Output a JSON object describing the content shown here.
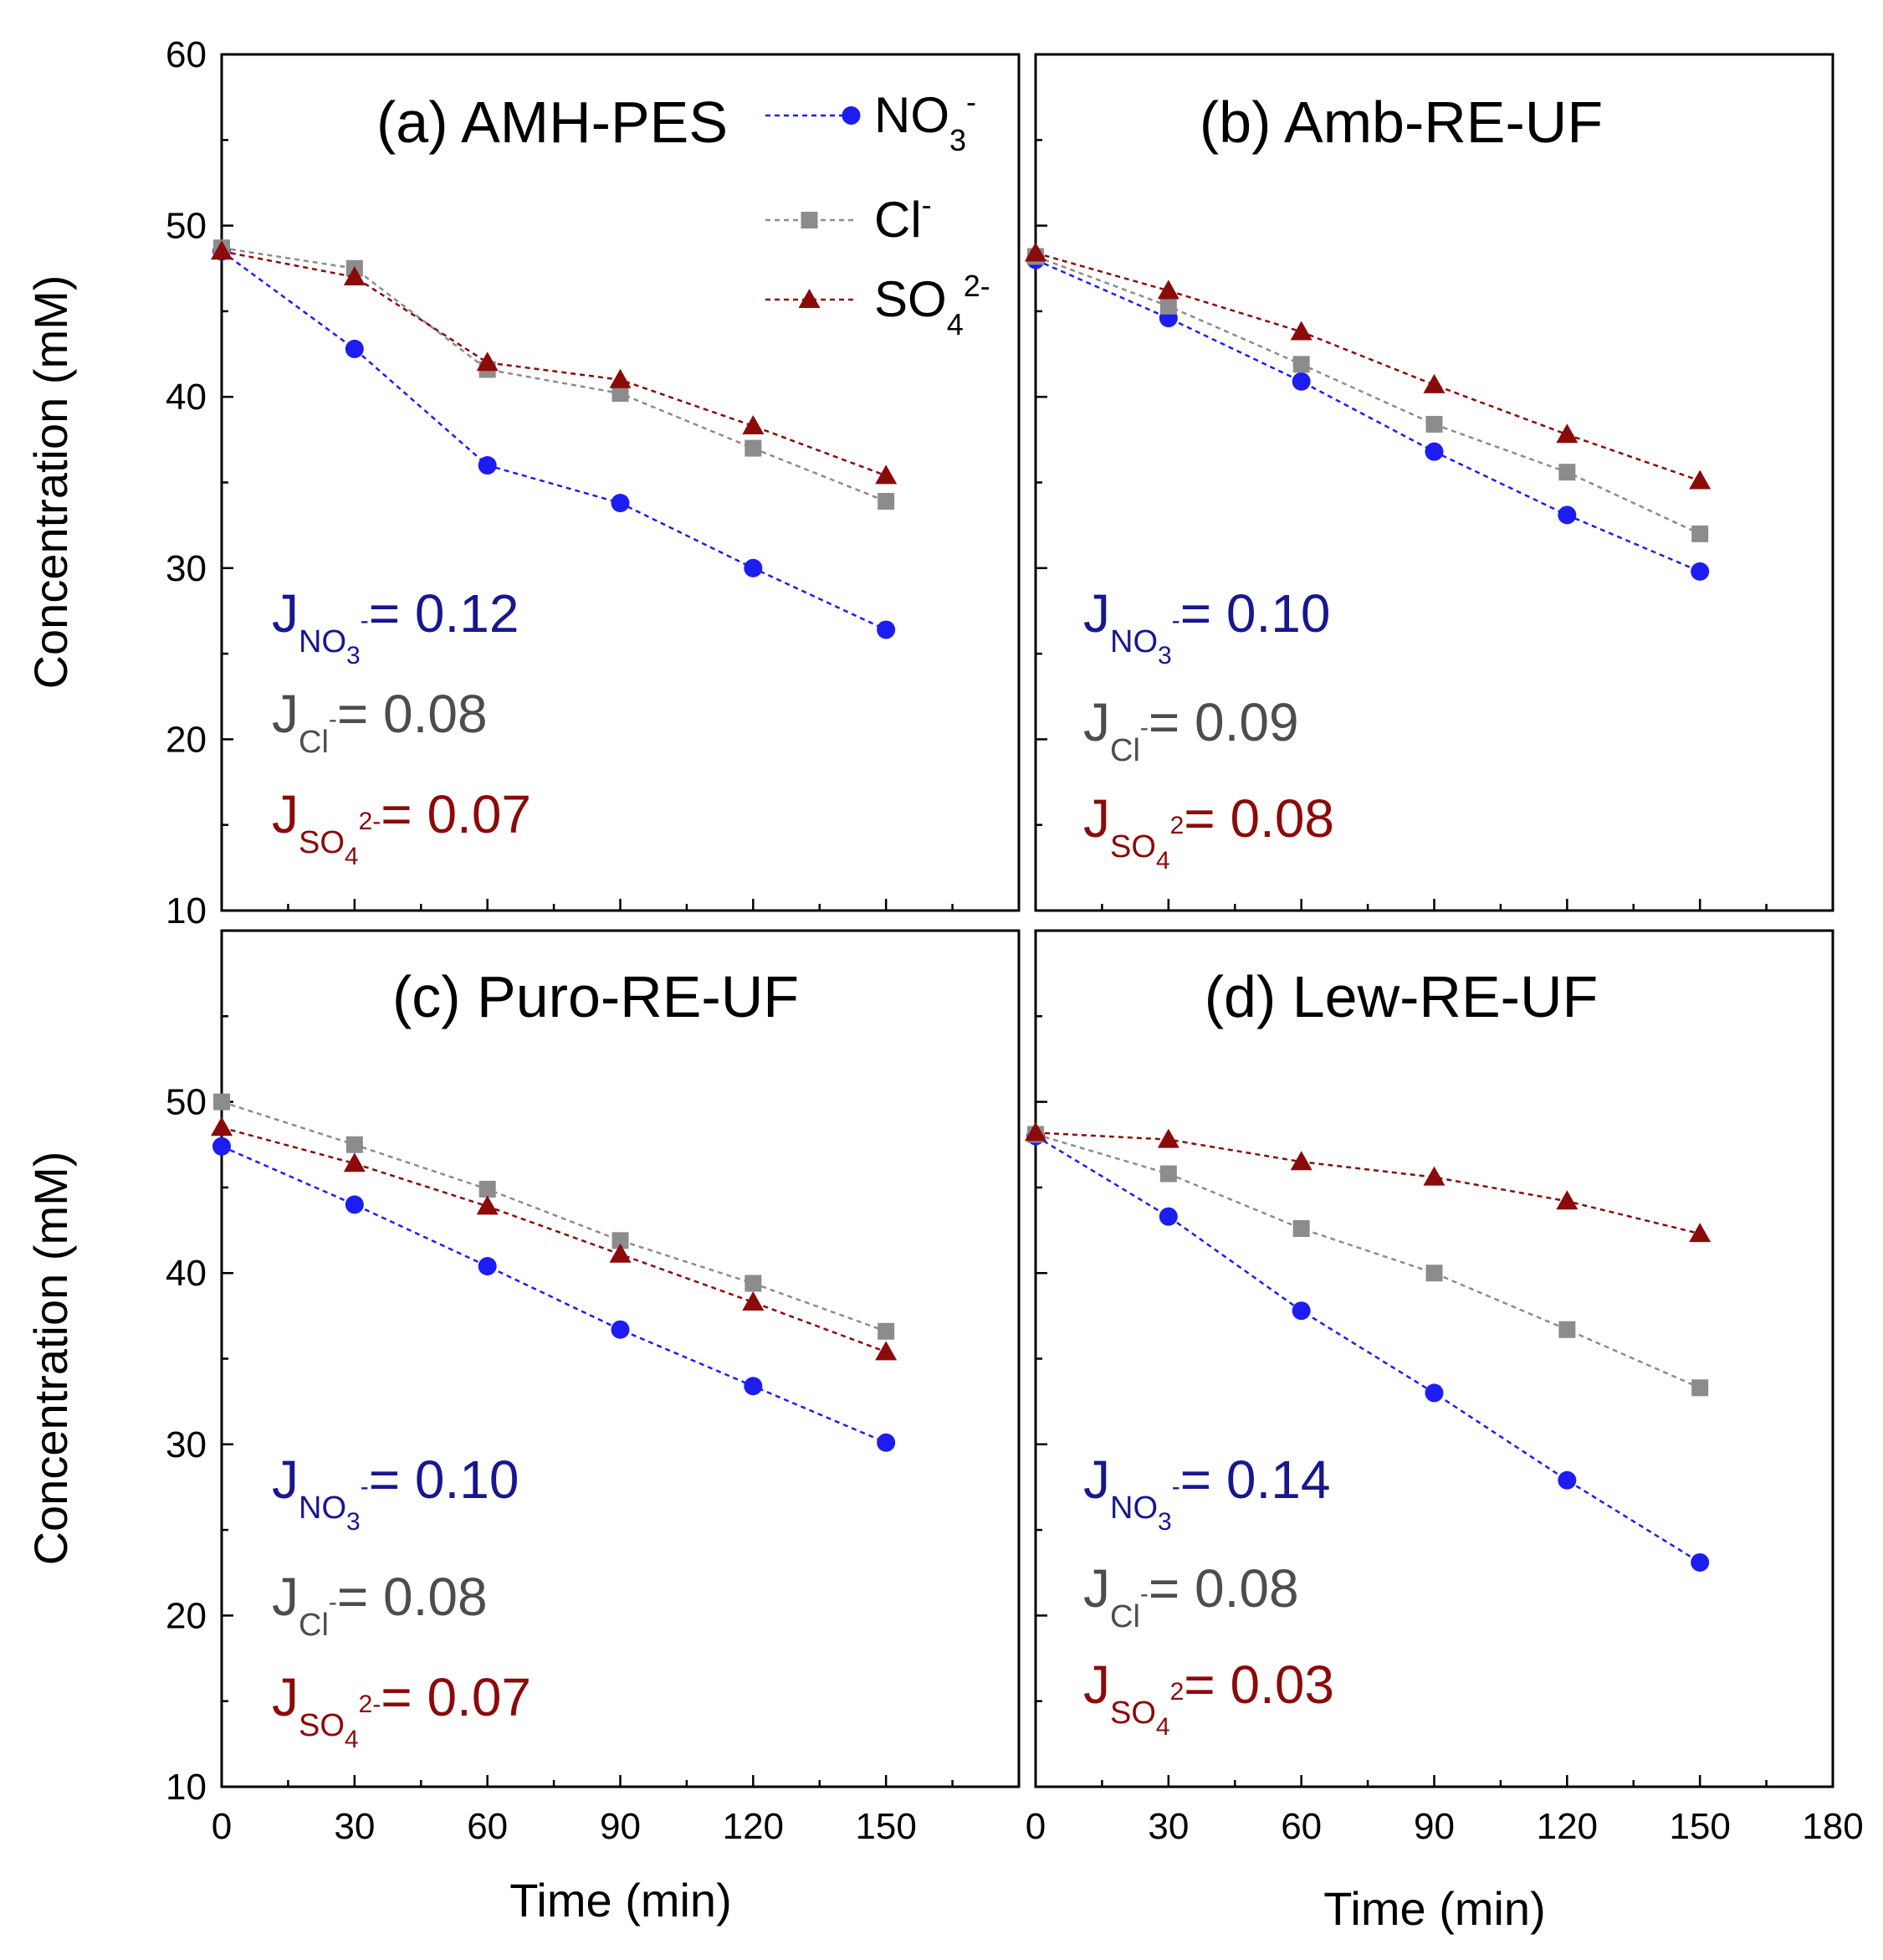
{
  "chart_data": [
    {
      "type": "line",
      "title": "(a) AMH-PES",
      "xlabel": "",
      "ylabel": "Concentration (mM)",
      "xlim": [
        0,
        180
      ],
      "ylim": [
        10,
        60
      ],
      "x": [
        0,
        30,
        60,
        90,
        120,
        150
      ],
      "series": [
        {
          "name": "NO3-",
          "values": [
            48.5,
            42.8,
            36.0,
            33.8,
            30.0,
            26.4
          ]
        },
        {
          "name": "Cl-",
          "values": [
            48.7,
            47.5,
            41.6,
            40.2,
            37.0,
            33.9
          ]
        },
        {
          "name": "SO42-",
          "values": [
            48.5,
            47.0,
            42.0,
            41.0,
            38.3,
            35.4
          ]
        }
      ],
      "fluxes": [
        {
          "J": "J",
          "ion": "NO",
          "sub": "3",
          "sup": "-",
          "value": "= 0.12"
        },
        {
          "J": "J",
          "ion": "Cl",
          "sub": "",
          "sup": "-",
          "value": "= 0.08"
        },
        {
          "J": "J",
          "ion": "SO",
          "sub": "4",
          "sup": "2-",
          "value": "= 0.07"
        }
      ]
    },
    {
      "type": "line",
      "title": "(b) Amb-RE-UF",
      "xlabel": "",
      "ylabel": "",
      "xlim": [
        0,
        180
      ],
      "ylim": [
        10,
        60
      ],
      "x": [
        0,
        30,
        60,
        90,
        120,
        150
      ],
      "series": [
        {
          "name": "NO3-",
          "values": [
            48.0,
            44.6,
            40.9,
            36.8,
            33.1,
            29.8
          ]
        },
        {
          "name": "Cl-",
          "values": [
            48.2,
            45.3,
            41.9,
            38.4,
            35.6,
            32.0
          ]
        },
        {
          "name": "SO42-",
          "values": [
            48.4,
            46.2,
            43.8,
            40.7,
            37.8,
            35.1
          ]
        }
      ],
      "fluxes": [
        {
          "J": "J",
          "ion": "NO",
          "sub": "3",
          "sup": "-",
          "value": "= 0.10"
        },
        {
          "J": "J",
          "ion": "Cl",
          "sub": "",
          "sup": "-",
          "value": "= 0.09"
        },
        {
          "J": "J",
          "ion": "SO",
          "sub": "4",
          "sup": "2",
          "value": "= 0.08"
        }
      ]
    },
    {
      "type": "line",
      "title": "(c) Puro-RE-UF",
      "xlabel": "Time (min)",
      "ylabel": "Concentration (mM)",
      "xlim": [
        0,
        180
      ],
      "ylim": [
        10,
        60
      ],
      "x": [
        0,
        30,
        60,
        90,
        120,
        150
      ],
      "series": [
        {
          "name": "NO3-",
          "values": [
            47.4,
            44.0,
            40.4,
            36.7,
            33.4,
            30.1
          ]
        },
        {
          "name": "Cl-",
          "values": [
            50.0,
            47.5,
            44.9,
            41.9,
            39.4,
            36.6
          ]
        },
        {
          "name": "SO42-",
          "values": [
            48.5,
            46.4,
            43.9,
            41.1,
            38.3,
            35.4
          ]
        }
      ],
      "fluxes": [
        {
          "J": "J",
          "ion": "NO",
          "sub": "3",
          "sup": "-",
          "value": "= 0.10"
        },
        {
          "J": "J",
          "ion": "Cl",
          "sub": "",
          "sup": "-",
          "value": "= 0.08"
        },
        {
          "J": "J",
          "ion": "SO",
          "sub": "4",
          "sup": "2-",
          "value": "= 0.07"
        }
      ]
    },
    {
      "type": "line",
      "title": "(d) Lew-RE-UF",
      "xlabel": "Time (min)",
      "ylabel": "",
      "xlim": [
        0,
        180
      ],
      "ylim": [
        10,
        60
      ],
      "x": [
        0,
        30,
        60,
        90,
        120,
        150
      ],
      "series": [
        {
          "name": "NO3-",
          "values": [
            48.0,
            43.3,
            37.8,
            33.0,
            27.9,
            23.1
          ]
        },
        {
          "name": "Cl-",
          "values": [
            48.1,
            45.8,
            42.6,
            40.0,
            36.7,
            33.3
          ]
        },
        {
          "name": "SO42-",
          "values": [
            48.2,
            47.8,
            46.5,
            45.6,
            44.2,
            42.3
          ]
        }
      ],
      "fluxes": [
        {
          "J": "J",
          "ion": "NO",
          "sub": "3",
          "sup": "-",
          "value": "= 0.14"
        },
        {
          "J": "J",
          "ion": "Cl",
          "sub": "",
          "sup": "-",
          "value": "= 0.08"
        },
        {
          "J": "J",
          "ion": "SO",
          "sub": "4",
          "sup": "2",
          "value": "= 0.03"
        }
      ]
    }
  ],
  "legend": [
    {
      "base": "NO",
      "sub": "3",
      "sup": "-",
      "marker": "circle",
      "color": "#1d1df2"
    },
    {
      "base": "Cl",
      "sub": "",
      "sup": "-",
      "marker": "square",
      "color": "#8c8c8c"
    },
    {
      "base": "SO",
      "sub": "4",
      "sup": "2-",
      "marker": "triangle",
      "color": "#8b0a0a"
    }
  ],
  "y_ticks": [
    10,
    20,
    30,
    40,
    50,
    60
  ],
  "x_ticks_left": [
    0,
    30,
    60,
    90,
    120,
    150
  ],
  "x_ticks_right": [
    0,
    30,
    60,
    90,
    120,
    150,
    180
  ],
  "series_colors": {
    "NO3-": "#1d1df2",
    "Cl-": "#8c8c8c",
    "SO42-": "#8b0a0a"
  },
  "flux_colors": [
    "#17178f",
    "#4d4d4d",
    "#8b0a0a"
  ]
}
